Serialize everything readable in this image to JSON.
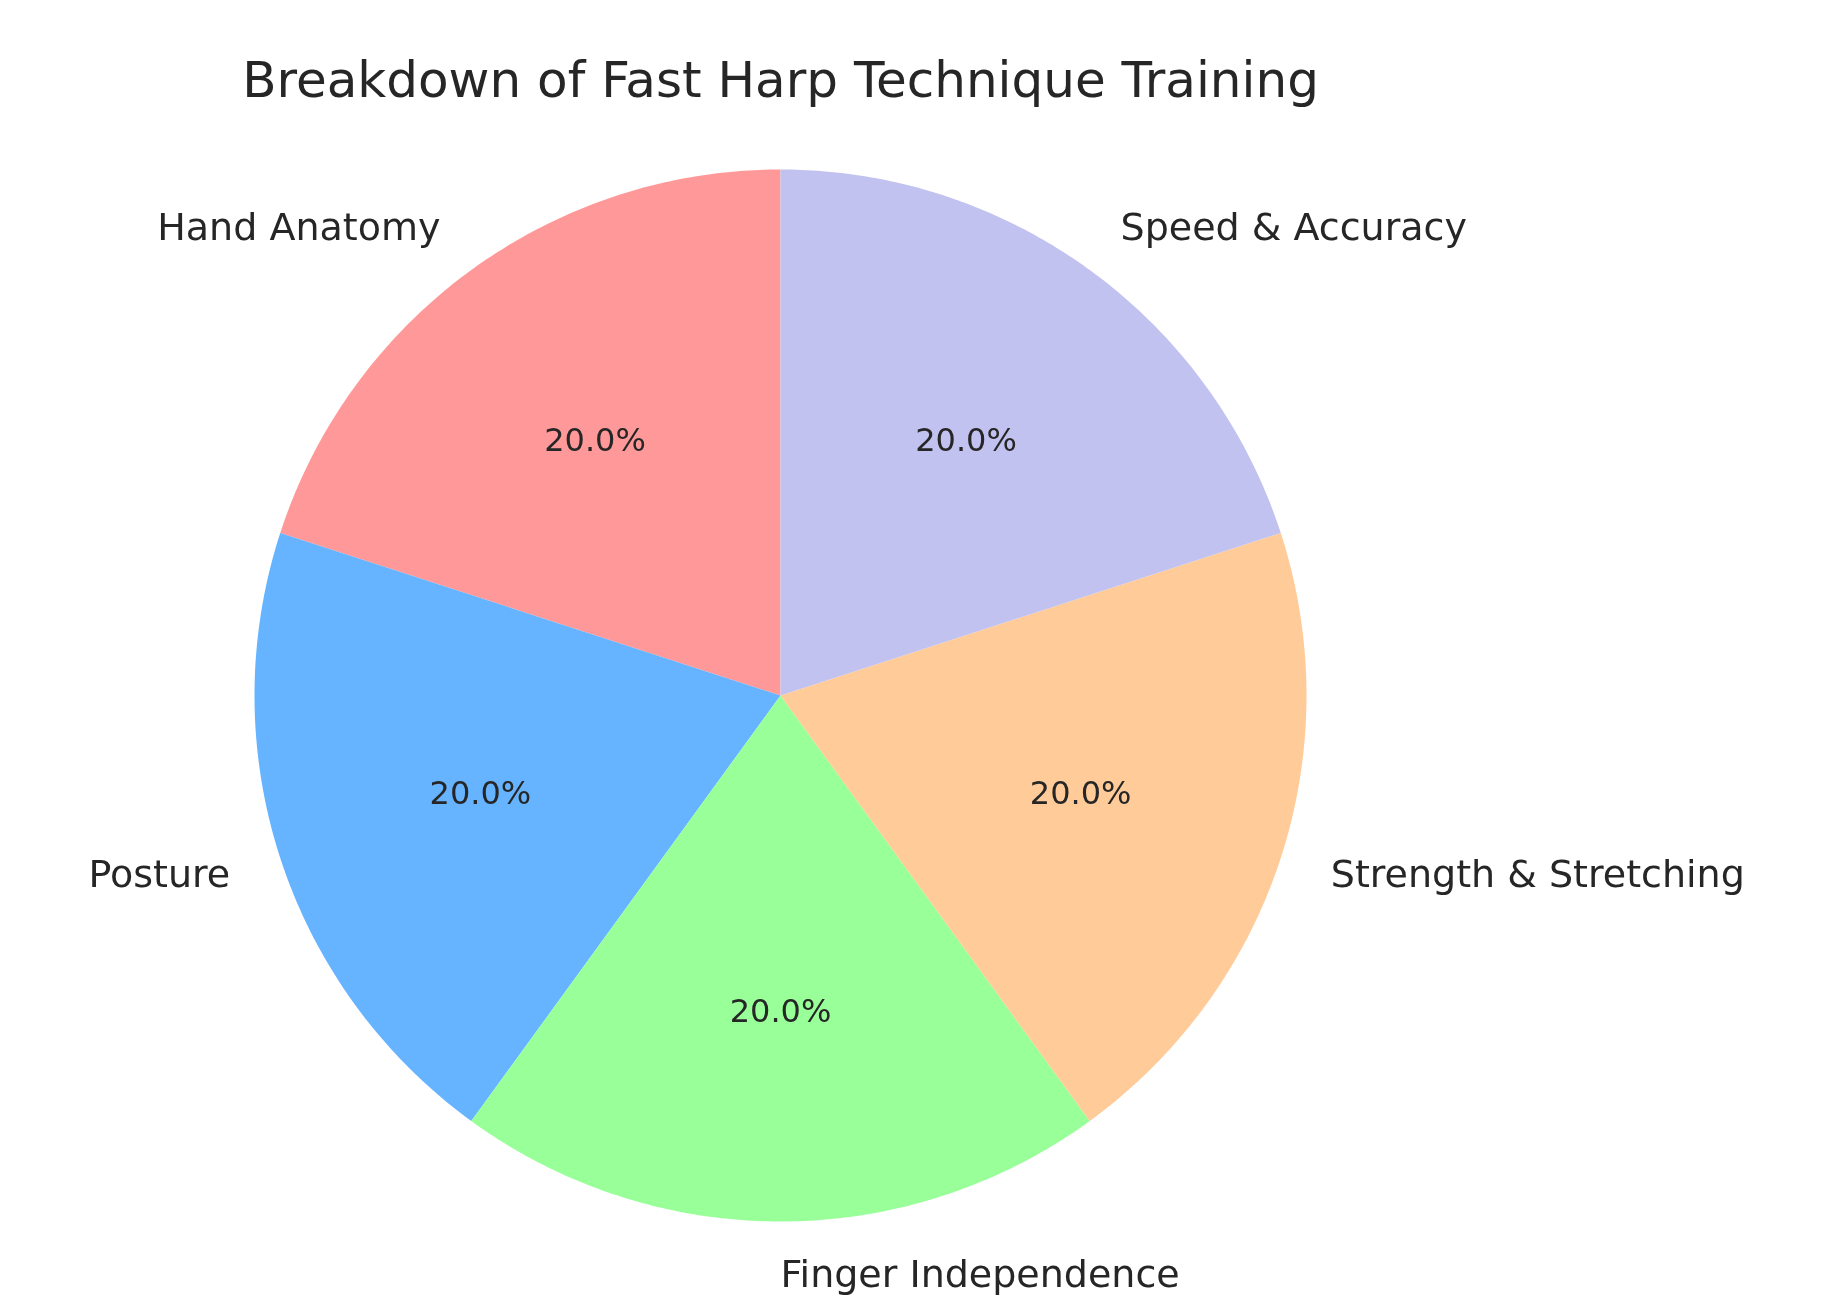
{
  "chart_data": {
    "type": "pie",
    "title": "Breakdown of Fast Harp Technique Training",
    "categories": [
      "Hand Anatomy",
      "Posture",
      "Finger Independence",
      "Strength & Stretching",
      "Speed & Accuracy"
    ],
    "values": [
      20,
      20,
      20,
      20,
      20
    ],
    "colors": [
      "#ff9999",
      "#66b3ff",
      "#99ff99",
      "#ffcc99",
      "#c2c2f0"
    ],
    "value_labels": [
      "20.0%",
      "20.0%",
      "20.0%",
      "20.0%",
      "20.0%"
    ]
  }
}
